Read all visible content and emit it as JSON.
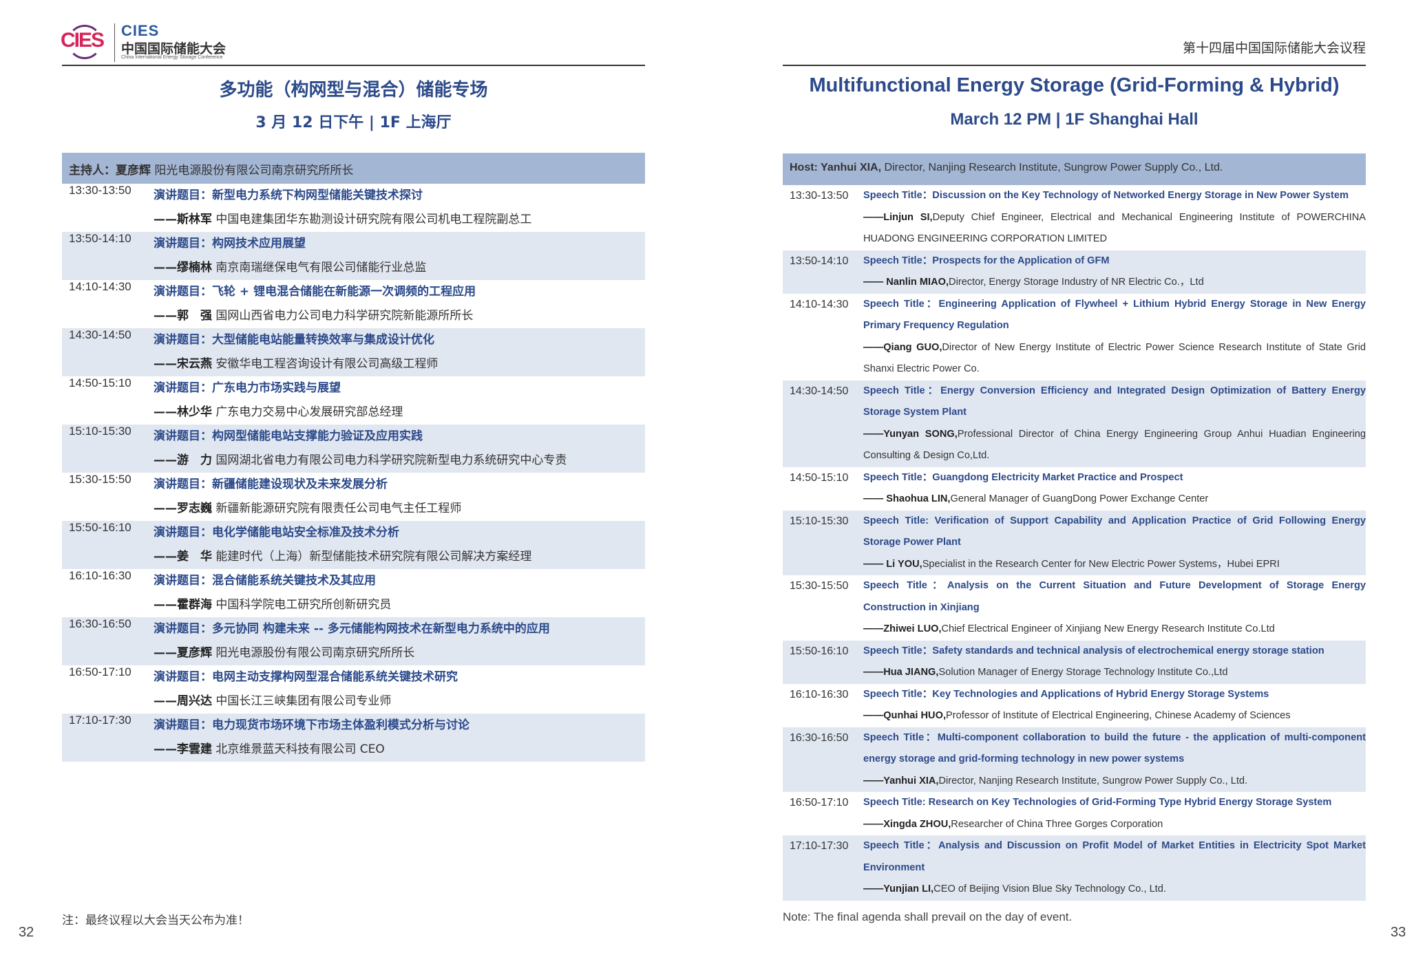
{
  "colors": {
    "accent_blue": "#2c4a8a",
    "host_band": "#a3b6d4",
    "row_shade": "#e1e7f1",
    "logo_red": "#d6245a"
  },
  "logo": {
    "mark_text": "CIES",
    "brand": "CIES",
    "name_cn": "中国国际储能大会",
    "name_en": "China International Energy Storage Conference"
  },
  "left": {
    "title": "多功能（构网型与混合）储能专场",
    "subtitle": "3 月 12 日下午 | 1F 上海厅",
    "host_label": "主持人：夏彦辉",
    "host_info": "阳光电源股份有限公司南京研究所所长",
    "rows": [
      {
        "time": "13:30-13:50",
        "title": "演讲题目：新型电力系统下构网型储能关键技术探讨",
        "speaker": "——斯林军",
        "affil": "中国电建集团华东勘测设计研究院有限公司机电工程院副总工"
      },
      {
        "time": "13:50-14:10",
        "title": "演讲题目：构网技术应用展望",
        "speaker": "——缪楠林",
        "affil": "南京南瑞继保电气有限公司储能行业总监"
      },
      {
        "time": "14:10-14:30",
        "title": "演讲题目：飞轮 + 锂电混合储能在新能源一次调频的工程应用",
        "speaker": "——郭　强",
        "affil": "国网山西省电力公司电力科学研究院新能源所所长"
      },
      {
        "time": "14:30-14:50",
        "title": "演讲题目：大型储能电站能量转换效率与集成设计优化",
        "speaker": "——宋云燕",
        "affil": "安徽华电工程咨询设计有限公司高级工程师"
      },
      {
        "time": "14:50-15:10",
        "title": "演讲题目：广东电力市场实践与展望",
        "speaker": "——林少华",
        "affil": "广东电力交易中心发展研究部总经理"
      },
      {
        "time": "15:10-15:30",
        "title": "演讲题目：构网型储能电站支撑能力验证及应用实践",
        "speaker": "——游　力",
        "affil": "国网湖北省电力有限公司电力科学研究院新型电力系统研究中心专责"
      },
      {
        "time": "15:30-15:50",
        "title": "演讲题目：新疆储能建设现状及未来发展分析",
        "speaker": "——罗志巍",
        "affil": "新疆新能源研究院有限责任公司电气主任工程师"
      },
      {
        "time": "15:50-16:10",
        "title": "演讲题目：电化学储能电站安全标准及技术分析",
        "speaker": "——姜　华",
        "affil": "能建时代（上海）新型储能技术研究院有限公司解决方案经理"
      },
      {
        "time": "16:10-16:30",
        "title": "演讲题目：混合储能系统关键技术及其应用",
        "speaker": "——霍群海",
        "affil": "中国科学院电工研究所创新研究员"
      },
      {
        "time": "16:30-16:50",
        "title": "演讲题目：多元协同 构建未来 -- 多元储能构网技术在新型电力系统中的应用",
        "speaker": "——夏彦辉",
        "affil": "阳光电源股份有限公司南京研究所所长"
      },
      {
        "time": "16:50-17:10",
        "title": "演讲题目：电网主动支撑构网型混合储能系统关键技术研究",
        "speaker": "——周兴达",
        "affil": "中国长江三峡集团有限公司专业师"
      },
      {
        "time": "17:10-17:30",
        "title": "演讲题目：电力现货市场环境下市场主体盈利模式分析与讨论",
        "speaker": "——李雲建",
        "affil": "北京维景蓝天科技有限公司 CEO"
      }
    ],
    "note": "注：最终议程以大会当天公布为准！",
    "page_number": "32"
  },
  "right": {
    "header": "第十四届中国国际储能大会议程",
    "title": "Multifunctional Energy Storage (Grid-Forming & Hybrid)",
    "subtitle": "March 12 PM | 1F  Shanghai Hall",
    "host_label": "Host: Yanhui XIA,",
    "host_info": "Director, Nanjing Research Institute, Sungrow Power Supply Co., Ltd.",
    "rows": [
      {
        "time": "13:30-13:50",
        "title": "Speech Title：Discussion on the Key Technology of Networked Energy Storage in New Power System",
        "speaker": "——Linjun SI,",
        "affil": "Deputy Chief Engineer, Electrical and Mechanical Engineering Institute of POWERCHINA HUADONG ENGINEERING CORPORATION LIMITED"
      },
      {
        "time": "13:50-14:10",
        "title": "Speech Title：Prospects for the Application of GFM",
        "speaker": "—— Nanlin MIAO,",
        "affil": "Director, Energy Storage Industry of NR Electric Co.，Ltd"
      },
      {
        "time": "14:10-14:30",
        "title": "Speech Title：Engineering Application of Flywheel + Lithium Hybrid Energy Storage in New Energy Primary Frequency Regulation",
        "speaker": "——Qiang GUO,",
        "affil": "Director of New Energy Institute of Electric Power Science Research Institute of State Grid Shanxi Electric Power Co."
      },
      {
        "time": "14:30-14:50",
        "title": "Speech Title：Energy Conversion Efficiency and Integrated Design Optimization of Battery Energy Storage System Plant",
        "speaker": "——Yunyan SONG,",
        "affil": "Professional Director of China Energy Engineering Group Anhui Huadian Engineering Consulting & Design Co,Ltd."
      },
      {
        "time": "14:50-15:10",
        "title": "Speech Title：Guangdong Electricity Market Practice and Prospect",
        "speaker": "—— Shaohua LIN,",
        "affil": "General Manager of GuangDong Power Exchange Center"
      },
      {
        "time": "15:10-15:30",
        "title": "Speech Title: Verification of Support Capability and Application Practice of Grid Following Energy Storage Power Plant",
        "speaker": "—— Li YOU,",
        "affil": "Specialist in the Research Center for New Electric Power Systems，Hubei EPRI"
      },
      {
        "time": "15:30-15:50",
        "title": "Speech Title：Analysis on the Current Situation and Future Development of Storage  Energy Construction in Xinjiang",
        "speaker": "——Zhiwei LUO,",
        "affil": "Chief Electrical Engineer of Xinjiang New Energy Research Institute Co.Ltd"
      },
      {
        "time": "15:50-16:10",
        "title": "Speech Title：Safety standards and technical analysis of electrochemical energy storage station",
        "speaker": "——Hua JIANG,",
        "affil": "Solution Manager of Energy Storage Technology Institute Co.,Ltd"
      },
      {
        "time": "16:10-16:30",
        "title": "Speech Title：Key Technologies and Applications of Hybrid Energy Storage Systems",
        "speaker": "——Qunhai HUO,",
        "affil": "Professor of Institute of Electrical Engineering, Chinese Academy of Sciences"
      },
      {
        "time": "16:30-16:50",
        "title": "Speech Title：Multi-component collaboration to build the future - the application of multi-component energy storage and grid-forming technology in new power systems",
        "speaker": "——Yanhui XIA,",
        "affil": "Director, Nanjing Research Institute, Sungrow Power Supply Co., Ltd."
      },
      {
        "time": "16:50-17:10",
        "title": "Speech Title: Research on Key Technologies of Grid-Forming Type Hybrid Energy Storage System",
        "speaker": "——Xingda ZHOU,",
        "affil": "Researcher of China Three Gorges Corporation"
      },
      {
        "time": "17:10-17:30",
        "title": "Speech Title：Analysis and Discussion on Profit Model of Market Entities in Electricity Spot Market Environment",
        "speaker": "——Yunjian LI,",
        "affil": "CEO of Beijing Vision Blue Sky Technology Co., Ltd."
      }
    ],
    "note": "Note: The final agenda shall prevail on the day of event.",
    "page_number": "33"
  }
}
